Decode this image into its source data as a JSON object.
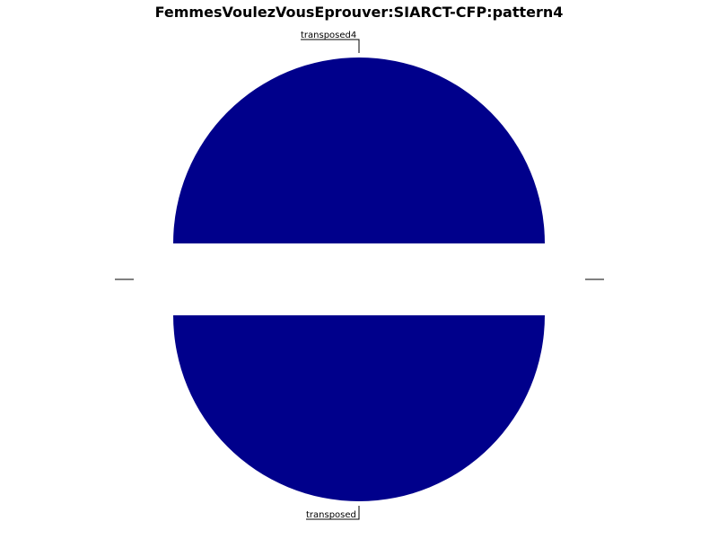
{
  "chart_data": {
    "type": "pie",
    "title": "FemmesVoulezVousEprouver:SIARCT-CFP:pattern4",
    "labels": [
      "transposed4",
      "transposed"
    ],
    "values": [
      1,
      1
    ],
    "colors": [
      "#00008b",
      "#00008b"
    ],
    "legend": "none"
  }
}
